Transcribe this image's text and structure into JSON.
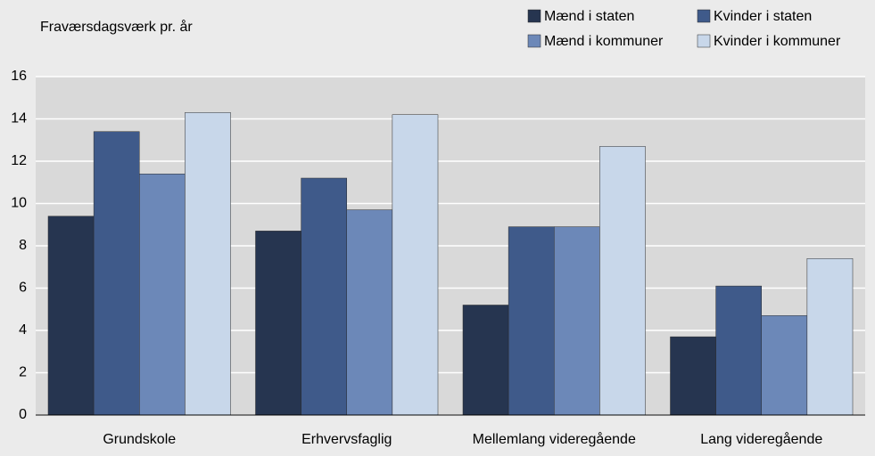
{
  "chart_data": {
    "type": "bar",
    "y_axis_label": "Fraværsdagsværk pr. år",
    "categories": [
      "Grundskole",
      "Erhvervsfaglig",
      "Mellemlang videregående",
      "Lang videregående"
    ],
    "series": [
      {
        "name": "Mænd i staten",
        "color": "#263550",
        "values": [
          9.4,
          8.7,
          5.2,
          3.7
        ]
      },
      {
        "name": "Kvinder i staten",
        "color": "#3f5a8a",
        "values": [
          13.4,
          11.2,
          8.9,
          6.1
        ]
      },
      {
        "name": "Mænd i kommuner",
        "color": "#6c88b8",
        "values": [
          11.4,
          9.7,
          8.9,
          4.7
        ]
      },
      {
        "name": "Kvinder i kommuner",
        "color": "#c8d7ea",
        "values": [
          14.3,
          14.2,
          12.7,
          7.4
        ]
      }
    ],
    "ylim": [
      0,
      16
    ],
    "yticks": [
      0,
      2,
      4,
      6,
      8,
      10,
      12,
      14,
      16
    ],
    "grid": true,
    "legend": "top-right"
  }
}
